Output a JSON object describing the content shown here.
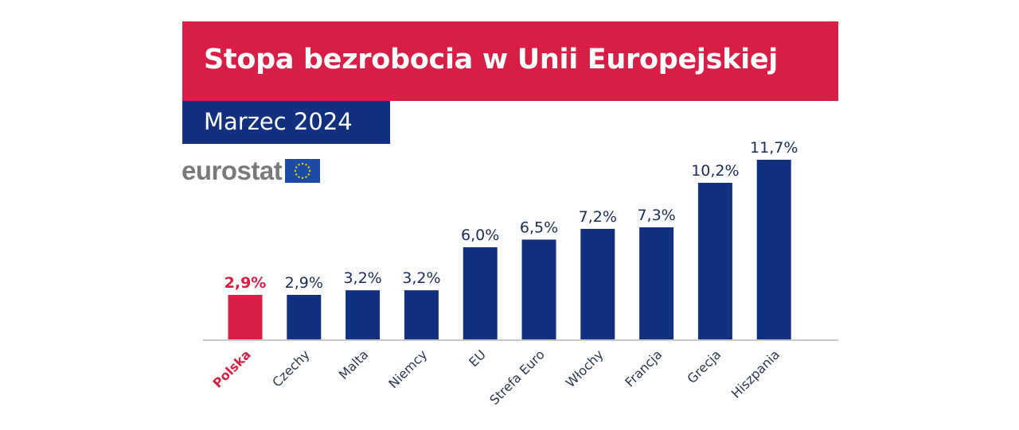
{
  "header": {
    "title": "Stopa bezrobocia w Unii Europejskiej",
    "subtitle": "Marzec 2024"
  },
  "logo": {
    "text": "eurostat",
    "icon": "eu-flag-icon"
  },
  "colors": {
    "title_bg": "#d81e45",
    "subtitle_bg": "#11307f",
    "bar": "#11307f",
    "highlight": "#d81e45"
  },
  "chart_data": {
    "type": "bar",
    "title": "Stopa bezrobocia w Unii Europejskiej",
    "subtitle": "Marzec 2024",
    "categories": [
      "Polska",
      "Czechy",
      "Malta",
      "Niemcy",
      "EU",
      "Strefa Euro",
      "Włochy",
      "Francja",
      "Grecja",
      "Hiszpania"
    ],
    "values": [
      2.9,
      2.9,
      3.2,
      3.2,
      6.0,
      6.5,
      7.2,
      7.3,
      10.2,
      11.7
    ],
    "labels": [
      "2,9%",
      "2,9%",
      "3,2%",
      "3,2%",
      "6,0%",
      "6,5%",
      "7,2%",
      "7,3%",
      "10,2%",
      "11,7%"
    ],
    "highlighted": [
      "Polska"
    ],
    "ylim": [
      0,
      11.7
    ],
    "grid": false,
    "xlabel": "",
    "ylabel": ""
  }
}
